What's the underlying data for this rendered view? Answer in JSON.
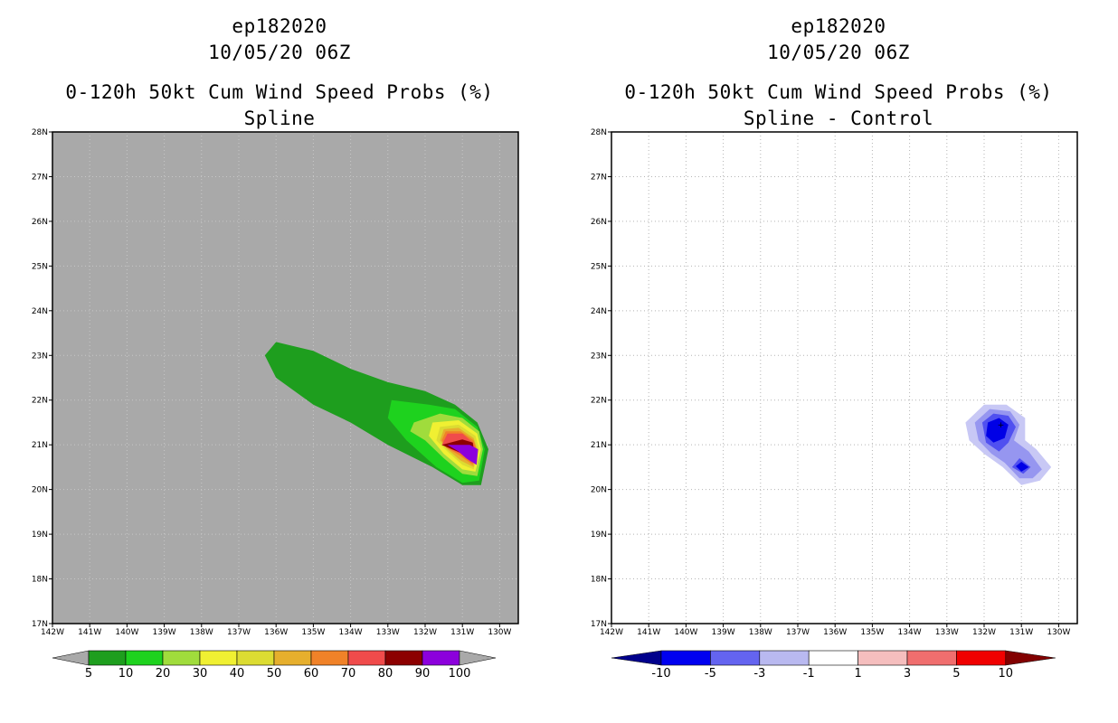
{
  "chart_data": [
    {
      "type": "heatmap",
      "storm_id": "ep182020",
      "datetime": "10/05/20 06Z",
      "title": "0-120h 50kt Cum Wind Speed Probs (%)",
      "subtitle": "Spline",
      "xlim": [
        -142,
        -129.5
      ],
      "ylim": [
        17,
        28
      ],
      "x_ticks": [
        "142W",
        "141W",
        "140W",
        "139W",
        "138W",
        "137W",
        "136W",
        "135W",
        "134W",
        "133W",
        "132W",
        "131W",
        "130W"
      ],
      "y_ticks": [
        "17N",
        "18N",
        "19N",
        "20N",
        "21N",
        "22N",
        "23N",
        "24N",
        "25N",
        "26N",
        "27N",
        "28N"
      ],
      "background": "#a9a9a9",
      "colorbar": {
        "labels": [
          "5",
          "10",
          "20",
          "30",
          "40",
          "50",
          "60",
          "70",
          "80",
          "90",
          "100"
        ],
        "colors": [
          "#1e9e1e",
          "#1ed21e",
          "#a0dc3c",
          "#f0f032",
          "#dcdc32",
          "#e6af2d",
          "#f08228",
          "#f04b4b",
          "#8c0000",
          "#8c00dc"
        ]
      },
      "contours": [
        {
          "level": 5,
          "color": "#1e9e1e",
          "points": [
            [
              -136.0,
              23.3
            ],
            [
              -135.0,
              23.1
            ],
            [
              -134.0,
              22.7
            ],
            [
              -133.0,
              22.4
            ],
            [
              -132.0,
              22.2
            ],
            [
              -131.2,
              21.9
            ],
            [
              -130.6,
              21.5
            ],
            [
              -130.3,
              20.9
            ],
            [
              -130.5,
              20.1
            ],
            [
              -131.0,
              20.1
            ],
            [
              -131.8,
              20.5
            ],
            [
              -133.0,
              21.0
            ],
            [
              -134.0,
              21.5
            ],
            [
              -135.0,
              21.9
            ],
            [
              -136.0,
              22.5
            ],
            [
              -136.3,
              23.0
            ]
          ]
        },
        {
          "level": 10,
          "color": "#1ed21e",
          "points": [
            [
              -132.9,
              22.0
            ],
            [
              -131.9,
              21.9
            ],
            [
              -131.2,
              21.8
            ],
            [
              -130.6,
              21.4
            ],
            [
              -130.4,
              20.9
            ],
            [
              -130.55,
              20.2
            ],
            [
              -131.0,
              20.15
            ],
            [
              -131.7,
              20.5
            ],
            [
              -132.5,
              21.1
            ],
            [
              -133.0,
              21.6
            ]
          ]
        },
        {
          "level": 20,
          "color": "#a0dc3c",
          "points": [
            [
              -132.3,
              21.5
            ],
            [
              -131.6,
              21.7
            ],
            [
              -131.0,
              21.6
            ],
            [
              -130.55,
              21.3
            ],
            [
              -130.45,
              20.9
            ],
            [
              -130.6,
              20.3
            ],
            [
              -131.0,
              20.35
            ],
            [
              -131.5,
              20.7
            ],
            [
              -132.0,
              21.1
            ],
            [
              -132.4,
              21.3
            ]
          ]
        },
        {
          "level": 30,
          "color": "#f0f032",
          "points": [
            [
              -131.8,
              21.5
            ],
            [
              -131.1,
              21.55
            ],
            [
              -130.6,
              21.25
            ],
            [
              -130.5,
              20.9
            ],
            [
              -130.65,
              20.4
            ],
            [
              -131.0,
              20.45
            ],
            [
              -131.5,
              20.8
            ],
            [
              -131.9,
              21.2
            ]
          ]
        },
        {
          "level": 40,
          "color": "#dcdc32",
          "points": [
            [
              -131.6,
              21.4
            ],
            [
              -131.1,
              21.45
            ],
            [
              -130.65,
              21.2
            ],
            [
              -130.55,
              20.9
            ],
            [
              -130.7,
              20.45
            ],
            [
              -131.0,
              20.55
            ],
            [
              -131.4,
              20.85
            ],
            [
              -131.7,
              21.1
            ]
          ]
        },
        {
          "level": 50,
          "color": "#e6af2d",
          "points": [
            [
              -131.5,
              21.35
            ],
            [
              -131.1,
              21.38
            ],
            [
              -130.7,
              21.15
            ],
            [
              -130.6,
              20.9
            ],
            [
              -130.7,
              20.5
            ],
            [
              -131.05,
              20.65
            ],
            [
              -131.4,
              20.9
            ],
            [
              -131.6,
              21.1
            ]
          ]
        },
        {
          "level": 60,
          "color": "#f08228",
          "points": [
            [
              -131.45,
              21.3
            ],
            [
              -131.05,
              21.3
            ],
            [
              -130.7,
              21.1
            ],
            [
              -130.62,
              20.9
            ],
            [
              -130.72,
              20.55
            ],
            [
              -131.05,
              20.75
            ],
            [
              -131.45,
              20.95
            ],
            [
              -131.55,
              21.1
            ]
          ]
        },
        {
          "level": 70,
          "color": "#f04b4b",
          "points": [
            [
              -131.4,
              21.25
            ],
            [
              -131.0,
              21.25
            ],
            [
              -130.72,
              21.05
            ],
            [
              -130.65,
              20.9
            ],
            [
              -130.75,
              20.6
            ],
            [
              -131.05,
              20.8
            ],
            [
              -131.55,
              21.0
            ]
          ]
        },
        {
          "level": 80,
          "color": "#8c0000",
          "points": [
            [
              -131.55,
              21.0
            ],
            [
              -131.0,
              21.12
            ],
            [
              -130.72,
              21.05
            ],
            [
              -130.7,
              20.9
            ],
            [
              -130.78,
              20.65
            ],
            [
              -131.05,
              20.82
            ]
          ]
        },
        {
          "level": 90,
          "color": "#8c00dc",
          "points": [
            [
              -131.4,
              21.0
            ],
            [
              -130.8,
              21.0
            ],
            [
              -130.58,
              20.9
            ],
            [
              -130.62,
              20.55
            ],
            [
              -130.9,
              20.7
            ],
            [
              -131.1,
              20.85
            ]
          ]
        }
      ]
    },
    {
      "type": "heatmap",
      "storm_id": "ep182020",
      "datetime": "10/05/20 06Z",
      "title": "0-120h 50kt Cum Wind Speed Probs (%)",
      "subtitle": "Spline - Control",
      "xlim": [
        -142,
        -129.5
      ],
      "ylim": [
        17,
        28
      ],
      "x_ticks": [
        "142W",
        "141W",
        "140W",
        "139W",
        "138W",
        "137W",
        "136W",
        "135W",
        "134W",
        "133W",
        "132W",
        "131W",
        "130W"
      ],
      "y_ticks": [
        "17N",
        "18N",
        "19N",
        "20N",
        "21N",
        "22N",
        "23N",
        "24N",
        "25N",
        "26N",
        "27N",
        "28N"
      ],
      "background": "#ffffff",
      "grid": true,
      "colorbar": {
        "labels": [
          "-10",
          "-5",
          "-3",
          "-1",
          "1",
          "3",
          "5",
          "10"
        ],
        "colors": [
          "#00008c",
          "#0000f0",
          "#6464f0",
          "#b9b9f0",
          "#ffffff",
          "#f5bebe",
          "#f06e6e",
          "#f00000",
          "#820000"
        ]
      },
      "contours": [
        {
          "level": -1,
          "color": "#c8c8f5",
          "points": [
            [
              -132.5,
              21.5
            ],
            [
              -132.0,
              21.9
            ],
            [
              -131.4,
              21.9
            ],
            [
              -130.9,
              21.6
            ],
            [
              -130.9,
              21.1
            ],
            [
              -130.6,
              20.9
            ],
            [
              -130.2,
              20.5
            ],
            [
              -130.5,
              20.2
            ],
            [
              -131.0,
              20.1
            ],
            [
              -131.5,
              20.5
            ],
            [
              -132.0,
              20.8
            ],
            [
              -132.4,
              21.1
            ]
          ]
        },
        {
          "level": -3,
          "color": "#9696f0",
          "points": [
            [
              -132.25,
              21.5
            ],
            [
              -131.85,
              21.8
            ],
            [
              -131.3,
              21.75
            ],
            [
              -131.05,
              21.45
            ],
            [
              -131.2,
              21.1
            ],
            [
              -130.8,
              20.85
            ],
            [
              -130.45,
              20.45
            ],
            [
              -130.7,
              20.25
            ],
            [
              -131.05,
              20.25
            ],
            [
              -131.45,
              20.6
            ],
            [
              -131.8,
              20.8
            ],
            [
              -132.15,
              21.1
            ]
          ]
        },
        {
          "level": -5,
          "color": "#5050f0",
          "points": [
            [
              -132.05,
              21.5
            ],
            [
              -131.75,
              21.7
            ],
            [
              -131.35,
              21.65
            ],
            [
              -131.15,
              21.4
            ],
            [
              -131.35,
              21.05
            ],
            [
              -131.6,
              20.85
            ],
            [
              -131.95,
              21.05
            ]
          ]
        },
        {
          "level": -5,
          "color": "#5050f0",
          "points": [
            [
              -131.05,
              20.7
            ],
            [
              -130.75,
              20.5
            ],
            [
              -130.95,
              20.35
            ],
            [
              -131.25,
              20.5
            ]
          ]
        },
        {
          "level": -10,
          "color": "#0000e6",
          "points": [
            [
              -131.9,
              21.5
            ],
            [
              -131.6,
              21.6
            ],
            [
              -131.35,
              21.45
            ],
            [
              -131.45,
              21.15
            ],
            [
              -131.75,
              21.05
            ],
            [
              -131.95,
              21.2
            ]
          ]
        },
        {
          "level": -10,
          "color": "#0000e6",
          "points": [
            [
              -131.0,
              20.62
            ],
            [
              -130.8,
              20.5
            ],
            [
              -131.0,
              20.4
            ],
            [
              -131.15,
              20.52
            ]
          ]
        }
      ],
      "annotations": [
        {
          "text": "+",
          "lon": -131.55,
          "lat": 21.45
        }
      ]
    }
  ]
}
